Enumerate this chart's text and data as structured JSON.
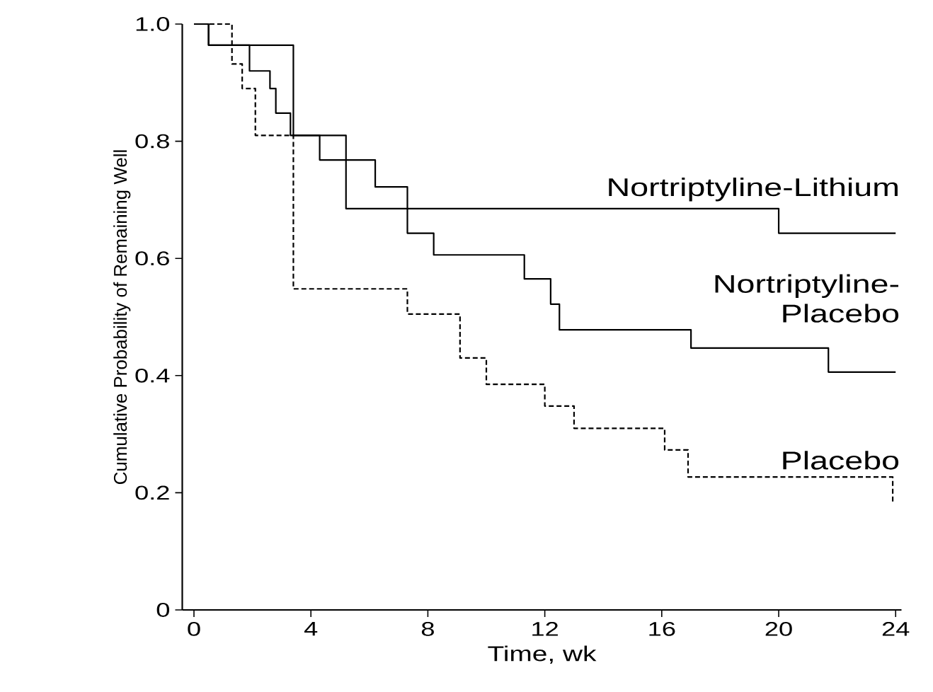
{
  "chart_data": {
    "type": "step",
    "xlabel": "Time, wk",
    "ylabel": "Cumulative Probability of Remaining Well",
    "xlim": [
      -0.4,
      24.2
    ],
    "ylim": [
      0,
      1
    ],
    "xticks": [
      0,
      4,
      8,
      12,
      16,
      20,
      24
    ],
    "yticks": [
      0,
      0.2,
      0.4,
      0.6,
      0.8,
      {
        "value": 1,
        "label": "1.0"
      }
    ],
    "grid": false,
    "legend": false,
    "marker": "none",
    "series": [
      {
        "name": "Nortriptyline-Lithium",
        "color": "#000000",
        "line_style": "solid",
        "x": [
          0,
          0.5,
          3.4,
          5.2,
          20,
          24
        ],
        "values": [
          1,
          0.964,
          0.81,
          0.685,
          0.643,
          0.643
        ]
      },
      {
        "name": "Nortriptyline-Placebo",
        "color": "#000000",
        "line_style": "solid",
        "x": [
          0,
          0.5,
          1.9,
          2.6,
          2.8,
          3.3,
          4.3,
          6.2,
          7.3,
          8.2,
          11.3,
          12.2,
          12.5,
          17.0,
          21.7,
          24
        ],
        "values": [
          1,
          0.964,
          0.92,
          0.89,
          0.848,
          0.81,
          0.768,
          0.722,
          0.643,
          0.606,
          0.565,
          0.522,
          0.478,
          0.447,
          0.406,
          0.406
        ]
      },
      {
        "name": "Placebo",
        "color": "#000000",
        "line_style": "dashed",
        "x": [
          0,
          1.3,
          1.65,
          2.1,
          3.4,
          7.3,
          9.1,
          10.0,
          12.0,
          13.0,
          16.1,
          16.9,
          23.9
        ],
        "values": [
          1,
          0.932,
          0.89,
          0.81,
          0.548,
          0.505,
          0.43,
          0.385,
          0.348,
          0.31,
          0.273,
          0.227,
          0.184
        ]
      }
    ]
  }
}
